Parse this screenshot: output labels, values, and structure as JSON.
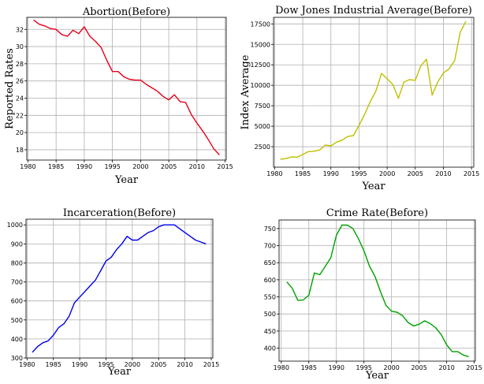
{
  "chart_data": [
    {
      "type": "line",
      "title": "Abortion(Before)",
      "xlabel": "Year",
      "ylabel": "Reported Rates",
      "color": "#e8001c",
      "xlim": [
        1979.8,
        2015.2
      ],
      "ylim": [
        16.8,
        33.4
      ],
      "xticks": [
        1980,
        1985,
        1990,
        1995,
        2000,
        2005,
        2010,
        2015
      ],
      "yticks": [
        18,
        20,
        22,
        24,
        26,
        28,
        30,
        32
      ],
      "grid": true,
      "x": [
        1981,
        1982,
        1983,
        1984,
        1985,
        1986,
        1987,
        1988,
        1989,
        1990,
        1991,
        1992,
        1993,
        1994,
        1995,
        1996,
        1997,
        1998,
        1999,
        2000,
        2001,
        2002,
        2003,
        2004,
        2005,
        2006,
        2007,
        2008,
        2009,
        2010,
        2011,
        2012,
        2013,
        2014
      ],
      "y": [
        33.1,
        32.6,
        32.4,
        32.1,
        32.0,
        31.4,
        31.2,
        31.9,
        31.5,
        32.3,
        31.2,
        30.6,
        29.9,
        28.4,
        27.1,
        27.1,
        26.5,
        26.2,
        26.1,
        26.1,
        25.6,
        25.2,
        24.8,
        24.2,
        23.8,
        24.4,
        23.6,
        23.5,
        22.1,
        21.1,
        20.2,
        19.2,
        18.1,
        17.4
      ]
    },
    {
      "type": "line",
      "title": "Dow Jones Industrial Average(Before)",
      "xlabel": "Year",
      "ylabel": "Index Average",
      "color": "#bfbf00",
      "xlim": [
        1979.8,
        2015.4
      ],
      "ylim": [
        0,
        18300
      ],
      "xticks": [
        1980,
        1985,
        1990,
        1995,
        2000,
        2005,
        2010,
        2015
      ],
      "yticks": [
        2500,
        5000,
        7500,
        10000,
        12500,
        15000,
        17500
      ],
      "grid": true,
      "x": [
        1981,
        1982,
        1983,
        1984,
        1985,
        1986,
        1987,
        1988,
        1989,
        1990,
        1991,
        1992,
        1993,
        1994,
        1995,
        1996,
        1997,
        1998,
        1999,
        2000,
        2001,
        2002,
        2003,
        2004,
        2005,
        2006,
        2007,
        2008,
        2009,
        2010,
        2011,
        2012,
        2013,
        2014
      ],
      "y": [
        950,
        1050,
        1250,
        1220,
        1550,
        1900,
        1950,
        2100,
        2700,
        2600,
        3050,
        3300,
        3750,
        3850,
        5100,
        6450,
        8000,
        9300,
        11450,
        10800,
        10100,
        8400,
        10400,
        10700,
        10600,
        12400,
        13200,
        8800,
        10400,
        11500,
        12000,
        13000,
        16500,
        17800
      ]
    },
    {
      "type": "line",
      "title": "Incarceration(Before)",
      "xlabel": "Year",
      "ylabel": "",
      "color": "#0000ee",
      "xlim": [
        1979.8,
        2015.3
      ],
      "ylim": [
        300,
        1030
      ],
      "xticks": [
        1980,
        1985,
        1990,
        1995,
        2000,
        2005,
        2010,
        2015
      ],
      "yticks": [
        300,
        400,
        500,
        600,
        700,
        800,
        900,
        1000
      ],
      "grid": true,
      "x": [
        1981,
        1982,
        1983,
        1984,
        1985,
        1986,
        1987,
        1988,
        1989,
        1990,
        1991,
        1992,
        1993,
        1994,
        1995,
        1996,
        1997,
        1998,
        1999,
        2000,
        2001,
        2002,
        2003,
        2004,
        2005,
        2006,
        2007,
        2008,
        2009,
        2010,
        2011,
        2012,
        2013,
        2014
      ],
      "y": [
        330,
        360,
        380,
        390,
        420,
        460,
        480,
        520,
        590,
        620,
        650,
        680,
        710,
        760,
        810,
        830,
        870,
        900,
        940,
        920,
        920,
        940,
        960,
        970,
        990,
        1000,
        1000,
        1000,
        980,
        960,
        940,
        920,
        910,
        900
      ]
    },
    {
      "type": "line",
      "title": "Crime Rate(Before)",
      "xlabel": "Year",
      "ylabel": "",
      "color": "#00a000",
      "xlim": [
        1979.6,
        2015.2
      ],
      "ylim": [
        362,
        775
      ],
      "xticks": [
        1980,
        1985,
        1990,
        1995,
        2000,
        2005,
        2010,
        2015
      ],
      "yticks": [
        400,
        450,
        500,
        550,
        600,
        650,
        700,
        750
      ],
      "grid": true,
      "x": [
        1981,
        1982,
        1983,
        1984,
        1985,
        1986,
        1987,
        1988,
        1989,
        1990,
        1991,
        1992,
        1993,
        1994,
        1995,
        1996,
        1997,
        1998,
        1999,
        2000,
        2001,
        2002,
        2003,
        2004,
        2005,
        2006,
        2007,
        2008,
        2009,
        2010,
        2011,
        2012,
        2013,
        2014
      ],
      "y": [
        594,
        575,
        540,
        541,
        555,
        620,
        615,
        640,
        665,
        730,
        760,
        760,
        750,
        720,
        685,
        640,
        610,
        565,
        525,
        508,
        505,
        495,
        475,
        465,
        470,
        480,
        472,
        460,
        440,
        410,
        390,
        390,
        380,
        375
      ]
    }
  ]
}
